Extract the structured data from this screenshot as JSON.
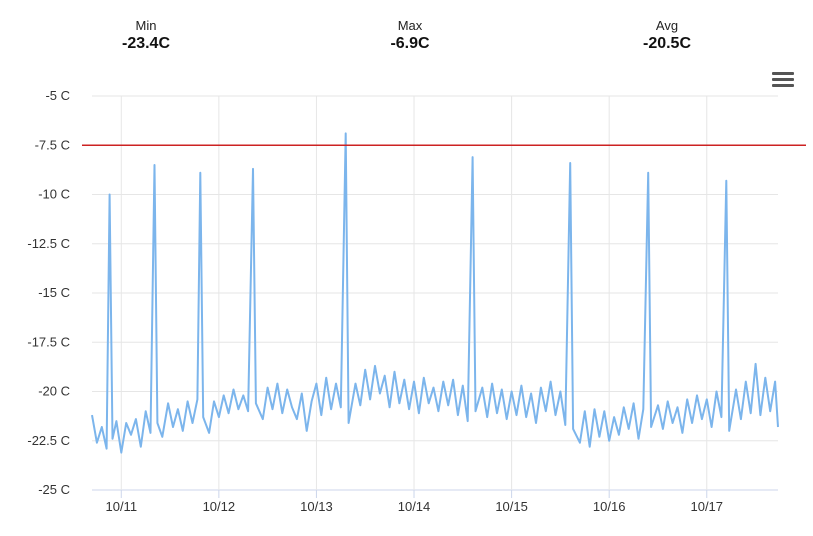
{
  "stats": {
    "min": {
      "label": "Min",
      "value": "-23.4C"
    },
    "max": {
      "label": "Max",
      "value": "-6.9C"
    },
    "avg": {
      "label": "Avg",
      "value": "-20.5C"
    }
  },
  "menu": {
    "icon": "hamburger-menu-icon"
  },
  "colors": {
    "series": "#7cb5ec",
    "threshold": "#cc2222",
    "grid": "#e6e6e6",
    "axis": "#ccd6eb"
  },
  "chart_data": {
    "type": "line",
    "title": "",
    "xlabel": "",
    "ylabel": "",
    "ylim": [
      -25,
      -5
    ],
    "xlim": [
      10.7,
      17.73
    ],
    "y_ticks": [
      -5,
      -7.5,
      -10,
      -12.5,
      -15,
      -17.5,
      -20,
      -22.5,
      -25
    ],
    "y_tick_labels": [
      "-5 C",
      "-7.5 C",
      "-10 C",
      "-12.5 C",
      "-15 C",
      "-17.5 C",
      "-20 C",
      "-22.5 C",
      "-25 C"
    ],
    "x_ticks": [
      11,
      12,
      13,
      14,
      15,
      16,
      17
    ],
    "x_tick_labels": [
      "10/11",
      "10/12",
      "10/13",
      "10/14",
      "10/15",
      "10/16",
      "10/17"
    ],
    "grid": "vertical and horizontal",
    "threshold": {
      "value": -7.5
    },
    "series": [
      {
        "points": [
          [
            10.7,
            -21.2
          ],
          [
            10.75,
            -22.6
          ],
          [
            10.8,
            -21.8
          ],
          [
            10.85,
            -22.9
          ],
          [
            10.88,
            -10.0
          ],
          [
            10.91,
            -22.4
          ],
          [
            10.95,
            -21.5
          ],
          [
            11.0,
            -23.1
          ],
          [
            11.05,
            -21.6
          ],
          [
            11.1,
            -22.2
          ],
          [
            11.15,
            -21.4
          ],
          [
            11.2,
            -22.8
          ],
          [
            11.25,
            -21.0
          ],
          [
            11.3,
            -22.1
          ],
          [
            11.34,
            -8.5
          ],
          [
            11.37,
            -21.6
          ],
          [
            11.42,
            -22.3
          ],
          [
            11.48,
            -20.6
          ],
          [
            11.53,
            -21.8
          ],
          [
            11.58,
            -20.9
          ],
          [
            11.63,
            -22.0
          ],
          [
            11.68,
            -20.5
          ],
          [
            11.73,
            -21.6
          ],
          [
            11.78,
            -20.4
          ],
          [
            11.81,
            -8.9
          ],
          [
            11.84,
            -21.3
          ],
          [
            11.9,
            -22.1
          ],
          [
            11.95,
            -20.5
          ],
          [
            12.0,
            -21.3
          ],
          [
            12.05,
            -20.2
          ],
          [
            12.1,
            -21.1
          ],
          [
            12.15,
            -19.9
          ],
          [
            12.2,
            -20.9
          ],
          [
            12.25,
            -20.2
          ],
          [
            12.3,
            -21.0
          ],
          [
            12.35,
            -8.7
          ],
          [
            12.38,
            -20.6
          ],
          [
            12.45,
            -21.4
          ],
          [
            12.5,
            -19.8
          ],
          [
            12.55,
            -20.9
          ],
          [
            12.6,
            -19.6
          ],
          [
            12.65,
            -21.1
          ],
          [
            12.7,
            -19.9
          ],
          [
            12.75,
            -20.8
          ],
          [
            12.8,
            -21.4
          ],
          [
            12.85,
            -20.1
          ],
          [
            12.9,
            -22.0
          ],
          [
            12.95,
            -20.5
          ],
          [
            13.0,
            -19.6
          ],
          [
            13.05,
            -21.2
          ],
          [
            13.1,
            -19.3
          ],
          [
            13.15,
            -20.9
          ],
          [
            13.2,
            -19.6
          ],
          [
            13.25,
            -20.8
          ],
          [
            13.3,
            -6.9
          ],
          [
            13.33,
            -21.6
          ],
          [
            13.4,
            -19.6
          ],
          [
            13.45,
            -20.7
          ],
          [
            13.5,
            -18.9
          ],
          [
            13.55,
            -20.4
          ],
          [
            13.6,
            -18.7
          ],
          [
            13.65,
            -20.1
          ],
          [
            13.7,
            -19.2
          ],
          [
            13.75,
            -20.8
          ],
          [
            13.8,
            -19.0
          ],
          [
            13.85,
            -20.6
          ],
          [
            13.9,
            -19.4
          ],
          [
            13.95,
            -20.9
          ],
          [
            14.0,
            -19.5
          ],
          [
            14.05,
            -21.1
          ],
          [
            14.1,
            -19.3
          ],
          [
            14.15,
            -20.6
          ],
          [
            14.2,
            -19.8
          ],
          [
            14.25,
            -21.0
          ],
          [
            14.3,
            -19.5
          ],
          [
            14.35,
            -20.7
          ],
          [
            14.4,
            -19.4
          ],
          [
            14.45,
            -21.2
          ],
          [
            14.5,
            -19.7
          ],
          [
            14.55,
            -21.5
          ],
          [
            14.6,
            -8.1
          ],
          [
            14.63,
            -21.0
          ],
          [
            14.7,
            -19.8
          ],
          [
            14.75,
            -21.3
          ],
          [
            14.8,
            -19.6
          ],
          [
            14.85,
            -21.1
          ],
          [
            14.9,
            -19.9
          ],
          [
            14.95,
            -21.4
          ],
          [
            15.0,
            -20.0
          ],
          [
            15.05,
            -21.2
          ],
          [
            15.1,
            -19.7
          ],
          [
            15.15,
            -21.3
          ],
          [
            15.2,
            -20.1
          ],
          [
            15.25,
            -21.6
          ],
          [
            15.3,
            -19.8
          ],
          [
            15.35,
            -21.0
          ],
          [
            15.4,
            -19.5
          ],
          [
            15.45,
            -21.2
          ],
          [
            15.5,
            -20.0
          ],
          [
            15.55,
            -21.7
          ],
          [
            15.6,
            -8.4
          ],
          [
            15.63,
            -21.9
          ],
          [
            15.7,
            -22.6
          ],
          [
            15.75,
            -21.0
          ],
          [
            15.8,
            -22.8
          ],
          [
            15.85,
            -20.9
          ],
          [
            15.9,
            -22.3
          ],
          [
            15.95,
            -21.0
          ],
          [
            16.0,
            -22.5
          ],
          [
            16.05,
            -21.3
          ],
          [
            16.1,
            -22.2
          ],
          [
            16.15,
            -20.8
          ],
          [
            16.2,
            -21.9
          ],
          [
            16.25,
            -20.6
          ],
          [
            16.3,
            -22.4
          ],
          [
            16.35,
            -20.9
          ],
          [
            16.4,
            -8.9
          ],
          [
            16.43,
            -21.8
          ],
          [
            16.5,
            -20.7
          ],
          [
            16.55,
            -21.9
          ],
          [
            16.6,
            -20.5
          ],
          [
            16.65,
            -21.6
          ],
          [
            16.7,
            -20.8
          ],
          [
            16.75,
            -22.1
          ],
          [
            16.8,
            -20.4
          ],
          [
            16.85,
            -21.6
          ],
          [
            16.9,
            -20.2
          ],
          [
            16.95,
            -21.4
          ],
          [
            17.0,
            -20.4
          ],
          [
            17.05,
            -21.8
          ],
          [
            17.1,
            -20.0
          ],
          [
            17.15,
            -21.3
          ],
          [
            17.2,
            -9.3
          ],
          [
            17.23,
            -22.0
          ],
          [
            17.3,
            -19.9
          ],
          [
            17.35,
            -21.4
          ],
          [
            17.4,
            -19.5
          ],
          [
            17.45,
            -21.1
          ],
          [
            17.5,
            -18.6
          ],
          [
            17.55,
            -21.2
          ],
          [
            17.6,
            -19.3
          ],
          [
            17.65,
            -21.0
          ],
          [
            17.7,
            -19.5
          ],
          [
            17.73,
            -21.8
          ]
        ]
      }
    ]
  }
}
